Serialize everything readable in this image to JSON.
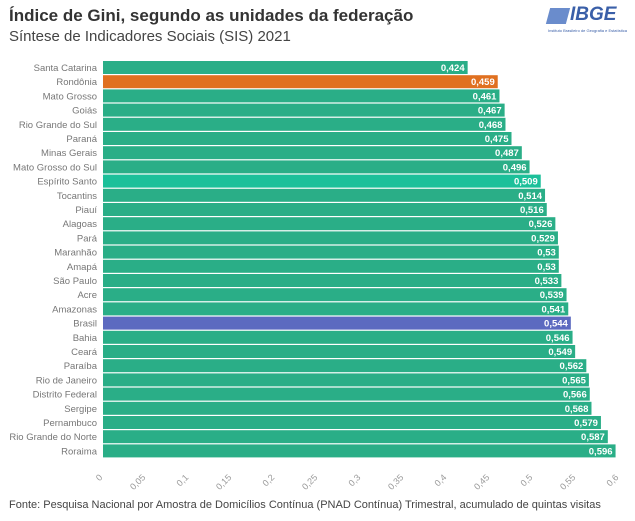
{
  "chart_data": {
    "type": "bar",
    "orientation": "horizontal",
    "title": "Índice de Gini, segundo as unidades da federação",
    "subtitle": "Síntese de Indicadores Sociais (SIS) 2021",
    "categories": [
      "Santa Catarina",
      "Rondônia",
      "Mato Grosso",
      "Goiás",
      "Rio Grande do Sul",
      "Paraná",
      "Minas Gerais",
      "Mato Grosso do Sul",
      "Espírito Santo",
      "Tocantins",
      "Piauí",
      "Alagoas",
      "Pará",
      "Maranhão",
      "Amapá",
      "São Paulo",
      "Acre",
      "Amazonas",
      "Brasil",
      "Bahia",
      "Ceará",
      "Paraíba",
      "Rio de Janeiro",
      "Distrito Federal",
      "Sergipe",
      "Pernambuco",
      "Rio Grande do Norte",
      "Roraima"
    ],
    "values": [
      0.424,
      0.459,
      0.461,
      0.467,
      0.468,
      0.475,
      0.487,
      0.496,
      0.509,
      0.514,
      0.516,
      0.526,
      0.529,
      0.53,
      0.53,
      0.533,
      0.539,
      0.541,
      0.544,
      0.546,
      0.549,
      0.562,
      0.565,
      0.566,
      0.568,
      0.579,
      0.587,
      0.596
    ],
    "value_labels": [
      "0,424",
      "0,459",
      "0,461",
      "0,467",
      "0,468",
      "0,475",
      "0,487",
      "0,496",
      "0,509",
      "0,514",
      "0,516",
      "0,526",
      "0,529",
      "0,53",
      "0,53",
      "0,533",
      "0,539",
      "0,541",
      "0,544",
      "0,546",
      "0,549",
      "0,562",
      "0,565",
      "0,566",
      "0,568",
      "0,579",
      "0,587",
      "0,596"
    ],
    "xlim": [
      0,
      0.6
    ],
    "xticks": [
      "0",
      "0,05",
      "0,1",
      "0,15",
      "0,2",
      "0,25",
      "0,3",
      "0,35",
      "0,4",
      "0,45",
      "0,5",
      "0,55",
      "0,6"
    ],
    "grid": false,
    "colors": {
      "default": "#2aae87",
      "Rondônia": "#e07020",
      "Brasil": "#5c6ac0",
      "Espírito Santo": "#1cc09a"
    }
  },
  "logo": {
    "name": "IBGE",
    "tagline": "Instituto Brasileiro de Geografia e Estatística"
  },
  "source": "Fonte: Pesquisa Nacional por Amostra de Domicílios Contínua (PNAD Contínua) Trimestral, acumulado de quintas visitas"
}
